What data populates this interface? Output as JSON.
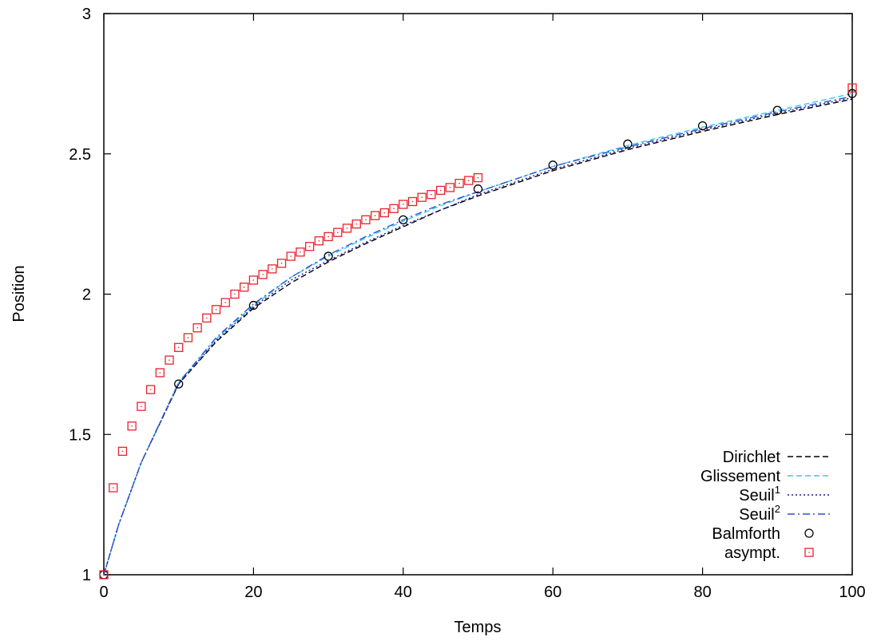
{
  "chart_data": {
    "type": "line",
    "title": "",
    "xlabel": "Temps",
    "ylabel": "Position",
    "xlim": [
      0,
      100
    ],
    "ylim": [
      1,
      3
    ],
    "xticks": [
      0,
      20,
      40,
      60,
      80,
      100
    ],
    "xtick_labels": [
      "0",
      "20",
      "40",
      "60",
      "80",
      "100"
    ],
    "yticks": [
      1,
      1.5,
      2,
      2.5,
      3
    ],
    "ytick_labels": [
      "1",
      "1.5",
      "2",
      "2.5",
      "3"
    ],
    "grid": false,
    "legend_position": "bottom-right",
    "series": [
      {
        "name": "Dirichlet",
        "style": "dashed",
        "color": "#000000",
        "x": [
          0,
          2,
          5,
          10,
          15,
          20,
          25,
          30,
          35,
          40,
          45,
          50,
          60,
          70,
          80,
          90,
          100
        ],
        "y": [
          1.0,
          1.18,
          1.4,
          1.68,
          1.83,
          1.95,
          2.04,
          2.115,
          2.18,
          2.24,
          2.3,
          2.35,
          2.44,
          2.515,
          2.58,
          2.64,
          2.695
        ]
      },
      {
        "name": "Glissement",
        "style": "dashed",
        "color": "#33ccee",
        "x": [
          0,
          2,
          5,
          10,
          15,
          20,
          25,
          30,
          35,
          40,
          45,
          50,
          60,
          70,
          80,
          90,
          100
        ],
        "y": [
          1.0,
          1.18,
          1.4,
          1.685,
          1.84,
          1.96,
          2.06,
          2.135,
          2.2,
          2.26,
          2.315,
          2.365,
          2.455,
          2.53,
          2.595,
          2.655,
          2.715
        ]
      },
      {
        "name": "Seuil",
        "name_sup": "1",
        "style": "dotted",
        "color": "#1a1aa0",
        "x": [
          0,
          2,
          5,
          10,
          15,
          20,
          25,
          30,
          35,
          40,
          45,
          50,
          60,
          70,
          80,
          90,
          100
        ],
        "y": [
          1.0,
          1.18,
          1.4,
          1.68,
          1.835,
          1.955,
          2.05,
          2.12,
          2.185,
          2.245,
          2.3,
          2.355,
          2.445,
          2.52,
          2.585,
          2.645,
          2.7
        ]
      },
      {
        "name": "Seuil",
        "name_sup": "2",
        "style": "dashdot",
        "color": "#2f4fcf",
        "x": [
          0,
          2,
          5,
          10,
          15,
          20,
          25,
          30,
          35,
          40,
          45,
          50,
          60,
          70,
          80,
          90,
          100
        ],
        "y": [
          1.0,
          1.18,
          1.4,
          1.685,
          1.845,
          1.965,
          2.06,
          2.14,
          2.205,
          2.265,
          2.32,
          2.365,
          2.455,
          2.525,
          2.59,
          2.65,
          2.705
        ]
      },
      {
        "name": "Balmforth",
        "style": "circle-markers",
        "color": "#000000",
        "x": [
          0,
          10,
          20,
          30,
          40,
          50,
          60,
          70,
          80,
          90,
          100
        ],
        "y": [
          1.0,
          1.68,
          1.96,
          2.135,
          2.265,
          2.375,
          2.46,
          2.535,
          2.6,
          2.655,
          2.715
        ]
      },
      {
        "name": "asympt.",
        "style": "square-markers",
        "color": "#e8232d",
        "x": [
          0,
          1.25,
          2.5,
          3.75,
          5,
          6.25,
          7.5,
          8.75,
          10,
          11.25,
          12.5,
          13.75,
          15,
          16.25,
          17.5,
          18.75,
          20,
          21.25,
          22.5,
          23.75,
          25,
          26.25,
          27.5,
          28.75,
          30,
          31.25,
          32.5,
          33.75,
          35,
          36.25,
          37.5,
          38.75,
          40,
          41.25,
          42.5,
          43.75,
          45,
          46.25,
          47.5,
          48.75,
          50,
          100
        ],
        "y": [
          1.0,
          1.31,
          1.44,
          1.53,
          1.6,
          1.66,
          1.72,
          1.765,
          1.81,
          1.845,
          1.88,
          1.915,
          1.945,
          1.97,
          2.0,
          2.025,
          2.05,
          2.07,
          2.09,
          2.11,
          2.135,
          2.15,
          2.17,
          2.19,
          2.205,
          2.22,
          2.235,
          2.25,
          2.265,
          2.28,
          2.29,
          2.305,
          2.32,
          2.33,
          2.345,
          2.355,
          2.37,
          2.38,
          2.395,
          2.405,
          2.415,
          2.735
        ]
      }
    ]
  }
}
